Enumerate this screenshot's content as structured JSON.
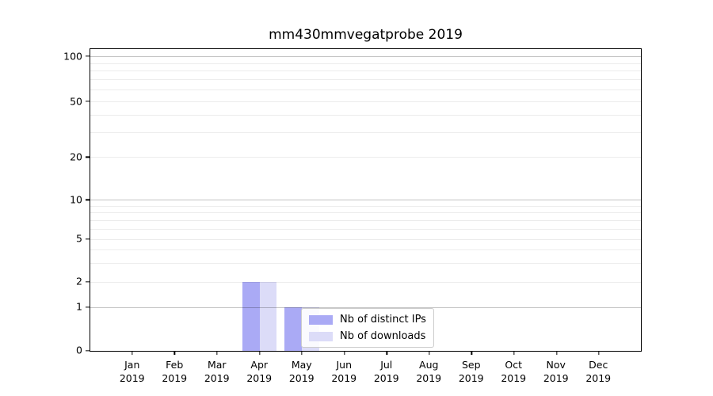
{
  "chart_data": {
    "type": "bar",
    "title": "mm430mmvegatprobe 2019",
    "x": {
      "categories": [
        "Jan",
        "Feb",
        "Mar",
        "Apr",
        "May",
        "Jun",
        "Jul",
        "Aug",
        "Sep",
        "Oct",
        "Nov",
        "Dec"
      ],
      "year": "2019"
    },
    "y_axis": {
      "scale": "symlog-like",
      "ylim": [
        0,
        113
      ],
      "grid": "on",
      "ticks": [
        {
          "label": "0",
          "value": 0,
          "pct": 100
        },
        {
          "label": "1",
          "value": 1,
          "pct": 85.49
        },
        {
          "label": "2",
          "value": 2,
          "pct": 77.12
        },
        {
          "label": "5",
          "value": 5,
          "pct": 62.88
        },
        {
          "label": "10",
          "value": 10,
          "pct": 49.93
        },
        {
          "label": "20",
          "value": 20,
          "pct": 35.82
        },
        {
          "label": "50",
          "value": 50,
          "pct": 17.25
        },
        {
          "label": "100",
          "value": 100,
          "pct": 2.35
        }
      ],
      "minor_gridlines": [
        {
          "value": 3,
          "pct": 70.82
        },
        {
          "value": 4,
          "pct": 66.35
        },
        {
          "value": 6,
          "pct": 59.49
        },
        {
          "value": 7,
          "pct": 56.6
        },
        {
          "value": 8,
          "pct": 54.1
        },
        {
          "value": 9,
          "pct": 51.91
        },
        {
          "value": 30,
          "pct": 27.61
        },
        {
          "value": 40,
          "pct": 21.78
        },
        {
          "value": 60,
          "pct": 13.35
        },
        {
          "value": 70,
          "pct": 10.02
        },
        {
          "value": 80,
          "pct": 7.15
        },
        {
          "value": 90,
          "pct": 4.63
        }
      ],
      "decade_values": [
        1,
        10,
        100
      ]
    },
    "series": [
      {
        "name": "Nb of distinct IPs",
        "color": "#aaaaf5",
        "values": [
          0,
          0,
          0,
          2,
          1,
          0,
          0,
          0,
          0,
          0,
          0,
          0
        ]
      },
      {
        "name": "Nb of downloads",
        "color": "#dcdcf8",
        "values": [
          0,
          0,
          0,
          2,
          1,
          0,
          0,
          0,
          0,
          0,
          0,
          0
        ]
      }
    ],
    "legend": {
      "position": "inside lower-center"
    }
  },
  "colors": {
    "grid_major": "rgba(0,0,0,0.24)",
    "grid_minor": "rgba(0,0,0,0.075)",
    "spine": "#000000",
    "legend_border": "#cccccc",
    "legend_bg": "rgba(255,255,255,0.85)",
    "background": "#ffffff"
  }
}
